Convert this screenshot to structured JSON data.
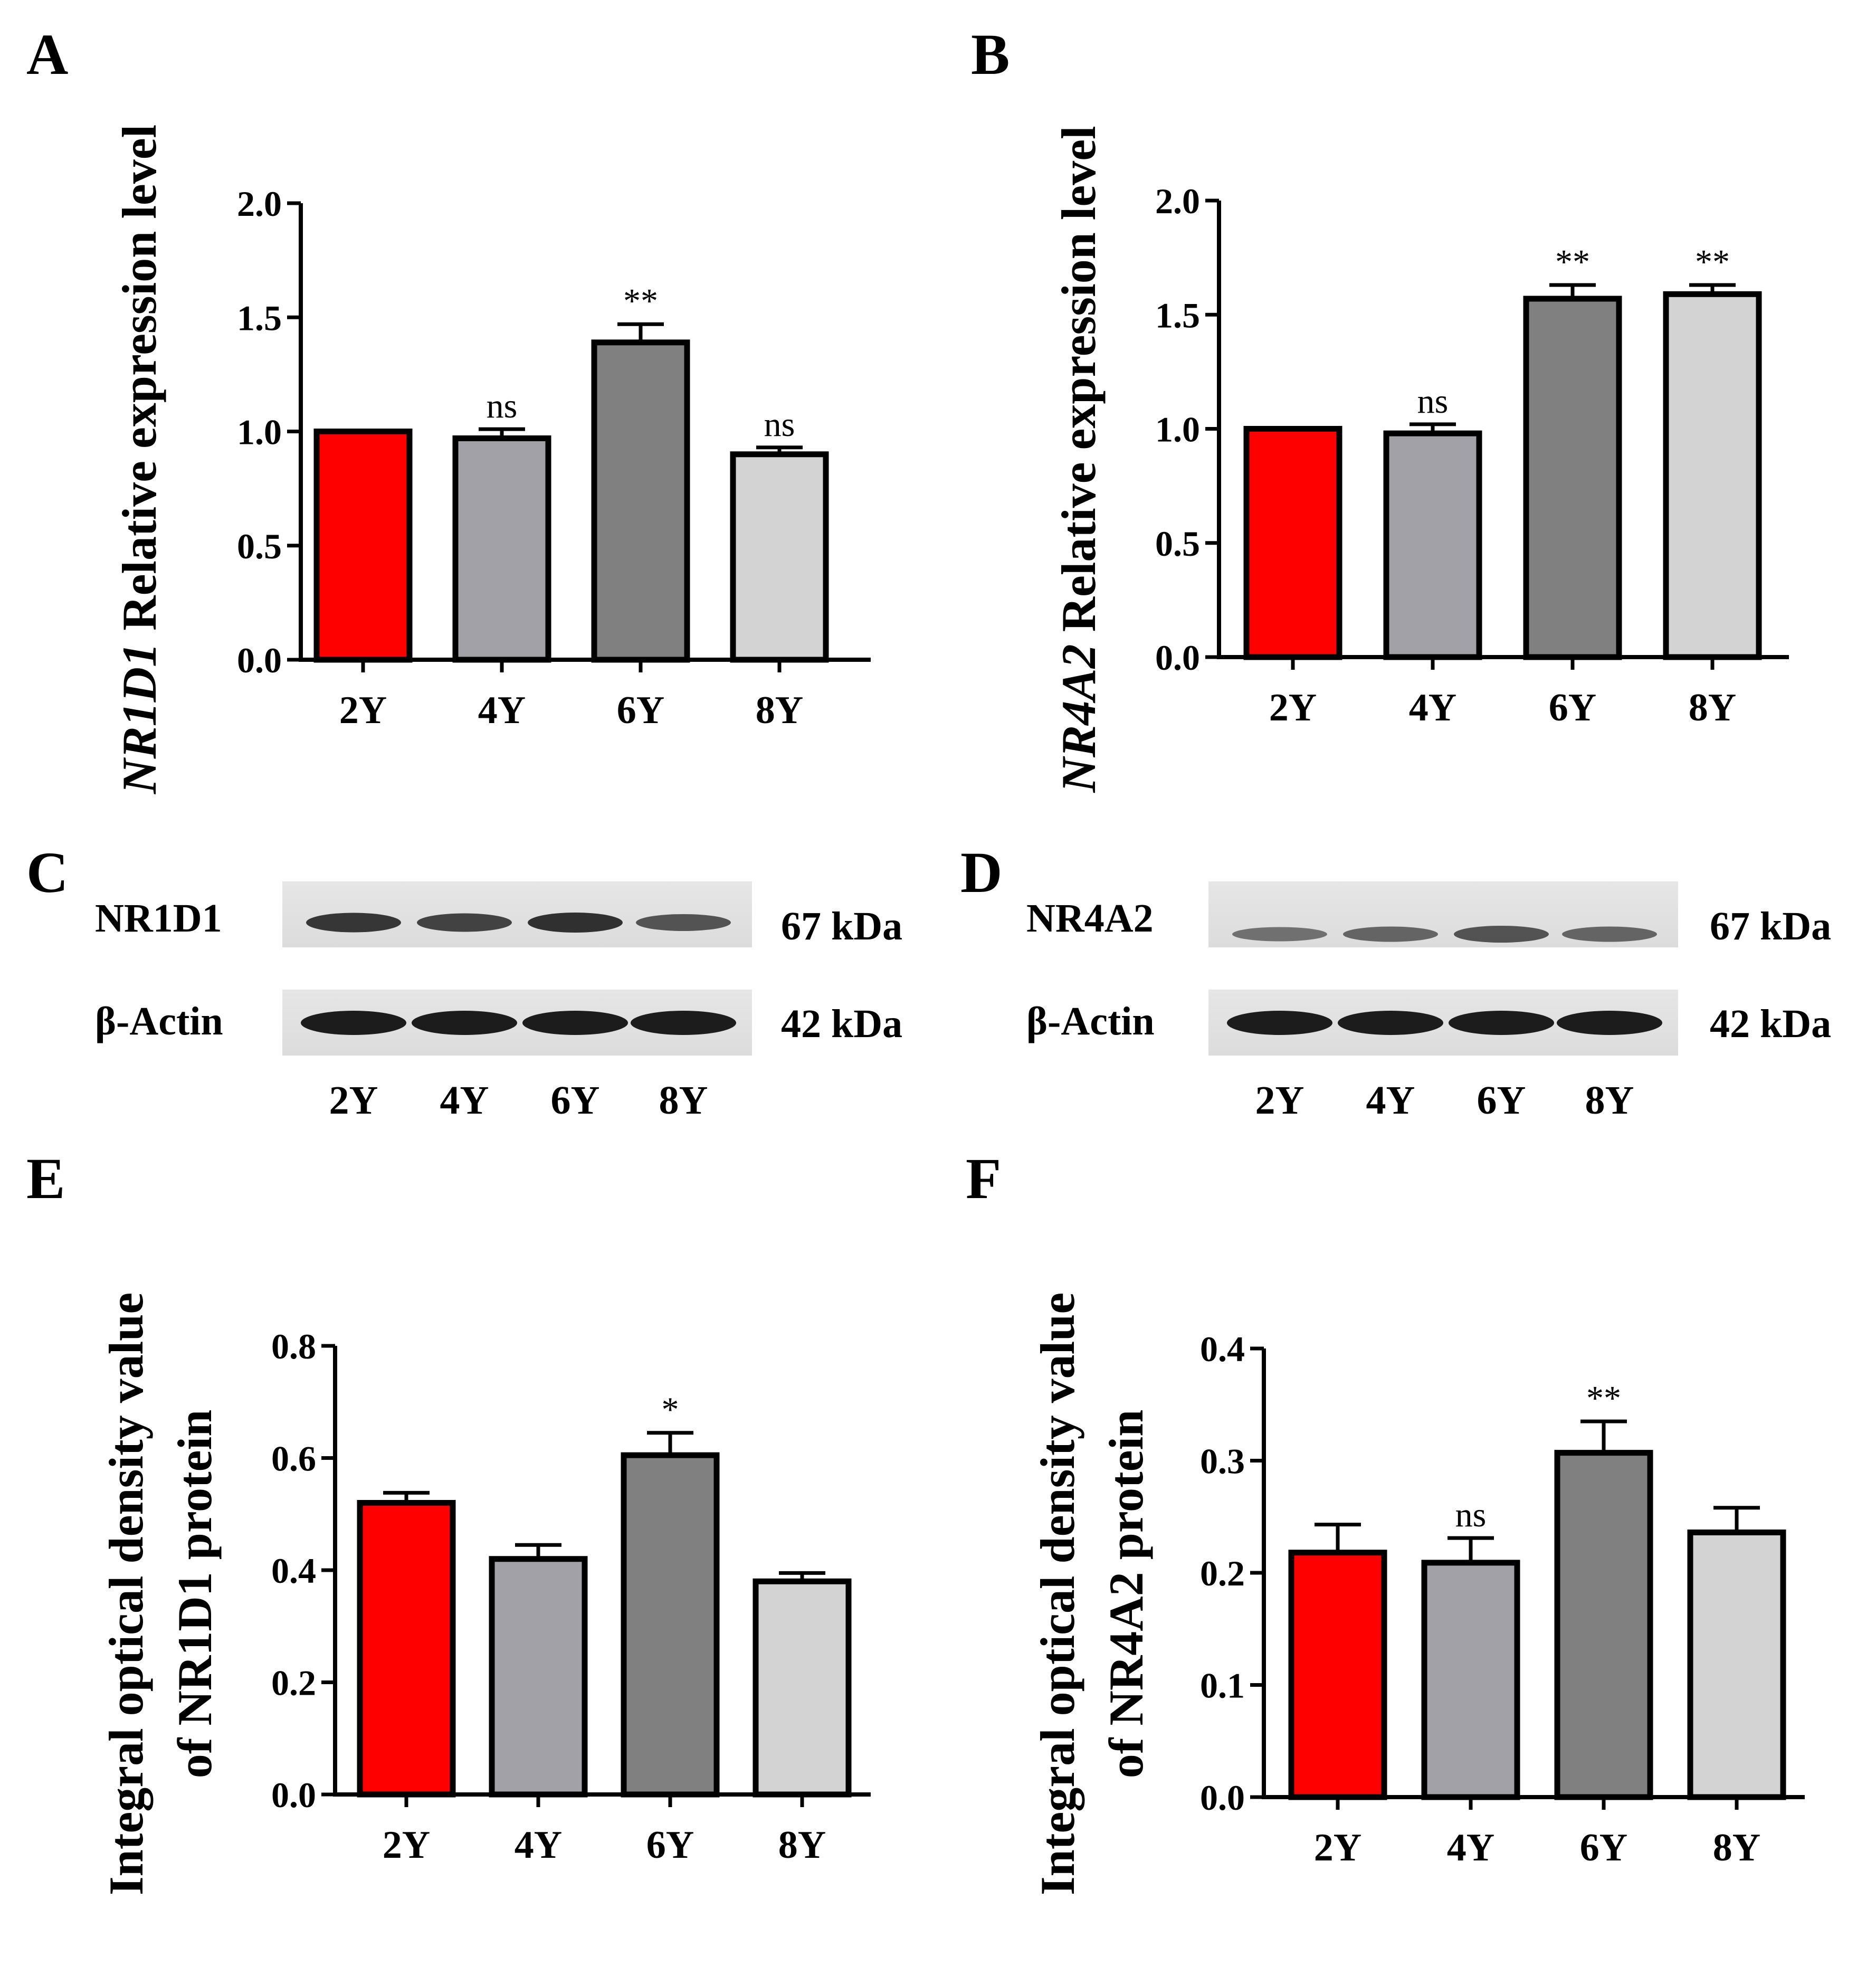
{
  "colors": {
    "2Y": "#ff0000",
    "4Y": "#a1a1a7",
    "6Y": "#808080",
    "8Y": "#d3d3d3",
    "axis": "#000000"
  },
  "chart_data": [
    {
      "panel": "A",
      "type": "bar",
      "ylabel_italic": "NR1D1",
      "ylabel_rest": " Relative expression level",
      "categories": [
        "2Y",
        "4Y",
        "6Y",
        "8Y"
      ],
      "values": [
        1.0,
        0.97,
        1.39,
        0.9
      ],
      "errors": [
        0.0,
        0.04,
        0.08,
        0.03
      ],
      "significance": [
        "",
        "ns",
        "**",
        "ns"
      ],
      "ylim": [
        0,
        2.0
      ],
      "yticks": [
        "0.0",
        "0.5",
        "1.0",
        "1.5",
        "2.0"
      ],
      "ytick_values": [
        0,
        0.5,
        1.0,
        1.5,
        2.0
      ]
    },
    {
      "panel": "B",
      "type": "bar",
      "ylabel_italic": "NR4A2",
      "ylabel_rest": " Relative expression level",
      "categories": [
        "2Y",
        "4Y",
        "6Y",
        "8Y"
      ],
      "values": [
        1.0,
        0.98,
        1.57,
        1.59
      ],
      "errors": [
        0.0,
        0.04,
        0.06,
        0.04
      ],
      "significance": [
        "",
        "ns",
        "**",
        "**"
      ],
      "ylim": [
        0,
        2.0
      ],
      "yticks": [
        "0.0",
        "0.5",
        "1.0",
        "1.5",
        "2.0"
      ],
      "ytick_values": [
        0,
        0.5,
        1.0,
        1.5,
        2.0
      ]
    },
    {
      "panel": "E",
      "type": "bar",
      "ylabel_line1": "Integral optical density value",
      "ylabel_line2": "of NR1D1 protein",
      "categories": [
        "2Y",
        "4Y",
        "6Y",
        "8Y"
      ],
      "values": [
        0.52,
        0.42,
        0.605,
        0.38
      ],
      "errors": [
        0.018,
        0.025,
        0.04,
        0.015
      ],
      "significance": [
        "",
        "",
        "*",
        ""
      ],
      "ylim": [
        0,
        0.8
      ],
      "yticks": [
        "0.0",
        "0.2",
        "0.4",
        "0.6",
        "0.8"
      ],
      "ytick_values": [
        0,
        0.2,
        0.4,
        0.6,
        0.8
      ]
    },
    {
      "panel": "F",
      "type": "bar",
      "ylabel_line1": "Integral optical density value",
      "ylabel_line2": "of NR4A2 protein",
      "categories": [
        "2Y",
        "4Y",
        "6Y",
        "8Y"
      ],
      "values": [
        0.218,
        0.209,
        0.307,
        0.236
      ],
      "errors": [
        0.025,
        0.022,
        0.028,
        0.022
      ],
      "significance": [
        "",
        "ns",
        "**",
        ""
      ],
      "ylim": [
        0,
        0.4
      ],
      "yticks": [
        "0.0",
        "0.1",
        "0.2",
        "0.3",
        "0.4"
      ],
      "ytick_values": [
        0,
        0.1,
        0.2,
        0.3,
        0.4
      ]
    }
  ],
  "western_blots": [
    {
      "panel": "C",
      "target": "NR1D1",
      "target_kda": "67 kDa",
      "control": "β-Actin",
      "control_kda": "42 kDa",
      "lanes": [
        "2Y",
        "4Y",
        "6Y",
        "8Y"
      ],
      "target_band_intensity": [
        0.85,
        0.75,
        0.9,
        0.6
      ],
      "control_band_intensity": [
        1.0,
        1.0,
        1.0,
        1.0
      ]
    },
    {
      "panel": "D",
      "target": "NR4A2",
      "target_kda": "67 kDa",
      "control": "β-Actin",
      "control_kda": "42 kDa",
      "lanes": [
        "2Y",
        "4Y",
        "6Y",
        "8Y"
      ],
      "target_band_intensity": [
        0.35,
        0.45,
        0.6,
        0.45
      ],
      "control_band_intensity": [
        1.0,
        1.0,
        1.0,
        1.0
      ]
    }
  ]
}
